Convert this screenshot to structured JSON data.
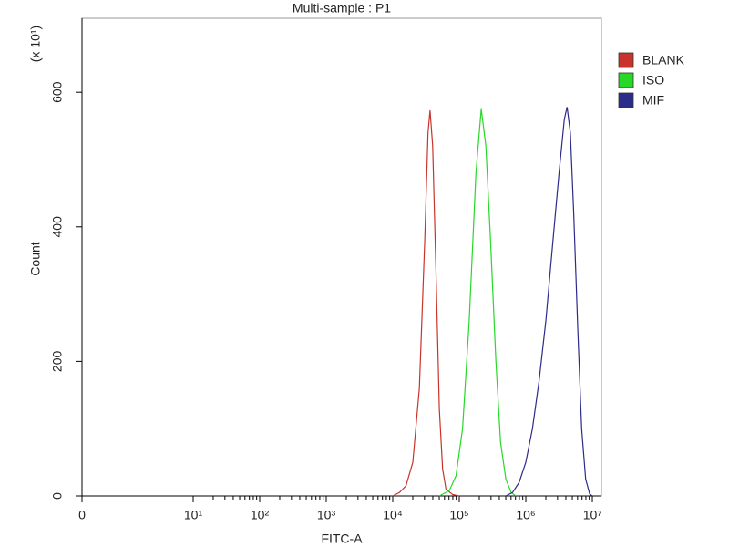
{
  "chart_data": {
    "type": "histogram-overlay",
    "title": "Multi-sample : P1",
    "x_label": "FITC-A",
    "y_label": "Count",
    "y_multiplier": "(x 10¹)",
    "xscale": "logicle",
    "xlim": [
      0,
      13700000
    ],
    "ylim": [
      0,
      710
    ],
    "xticks": [
      0,
      {
        "value": 10,
        "label": "10¹"
      },
      {
        "value": 100,
        "label": "10²"
      },
      {
        "value": 1000,
        "label": "10³"
      },
      {
        "value": 10000,
        "label": "10⁴"
      },
      {
        "value": 100000,
        "label": "10⁵"
      },
      {
        "value": 1000000,
        "label": "10⁶"
      },
      {
        "value": 10000000,
        "label": "10⁷"
      }
    ],
    "xminorticks": [
      20,
      30,
      40,
      50,
      60,
      70,
      80,
      90,
      200,
      300,
      400,
      500,
      600,
      700,
      800,
      900,
      2000,
      3000,
      4000,
      5000,
      6000,
      7000,
      8000,
      9000,
      20000,
      30000,
      40000,
      50000,
      60000,
      70000,
      80000,
      90000,
      200000,
      300000,
      400000,
      500000,
      600000,
      700000,
      800000,
      900000,
      2000000,
      3000000,
      4000000,
      5000000,
      6000000,
      7000000,
      8000000,
      9000000
    ],
    "yticks": [
      0,
      200,
      400,
      600
    ],
    "legend": "top-right-outside",
    "series": [
      {
        "name": "BLANK",
        "color": "#c8342c",
        "x": [
          10000,
          12600,
          15800,
          20000,
          25100,
          30200,
          33900,
          36300,
          39800,
          44700,
          50100,
          56200,
          63100,
          79400,
          100000
        ],
        "values": [
          0,
          5,
          15,
          50,
          160,
          380,
          540,
          573,
          520,
          330,
          130,
          40,
          10,
          2,
          0
        ]
      },
      {
        "name": "ISO",
        "color": "#27d827",
        "x": [
          50100,
          70800,
          89100,
          112000,
          141000,
          178000,
          214000,
          251000,
          295000,
          355000,
          417000,
          501000,
          603000,
          708000
        ],
        "values": [
          0,
          8,
          30,
          100,
          260,
          480,
          575,
          520,
          380,
          200,
          80,
          25,
          5,
          0
        ]
      },
      {
        "name": "MIF",
        "color": "#2b2b8a",
        "x": [
          501000,
          631000,
          794000,
          1000000,
          1260000,
          1580000,
          2000000,
          2510000,
          3160000,
          3800000,
          4170000,
          4680000,
          5250000,
          6030000,
          6920000,
          7940000,
          9120000,
          10000000
        ],
        "values": [
          0,
          5,
          20,
          50,
          100,
          170,
          260,
          370,
          480,
          560,
          578,
          540,
          420,
          250,
          100,
          25,
          3,
          0
        ]
      }
    ]
  }
}
